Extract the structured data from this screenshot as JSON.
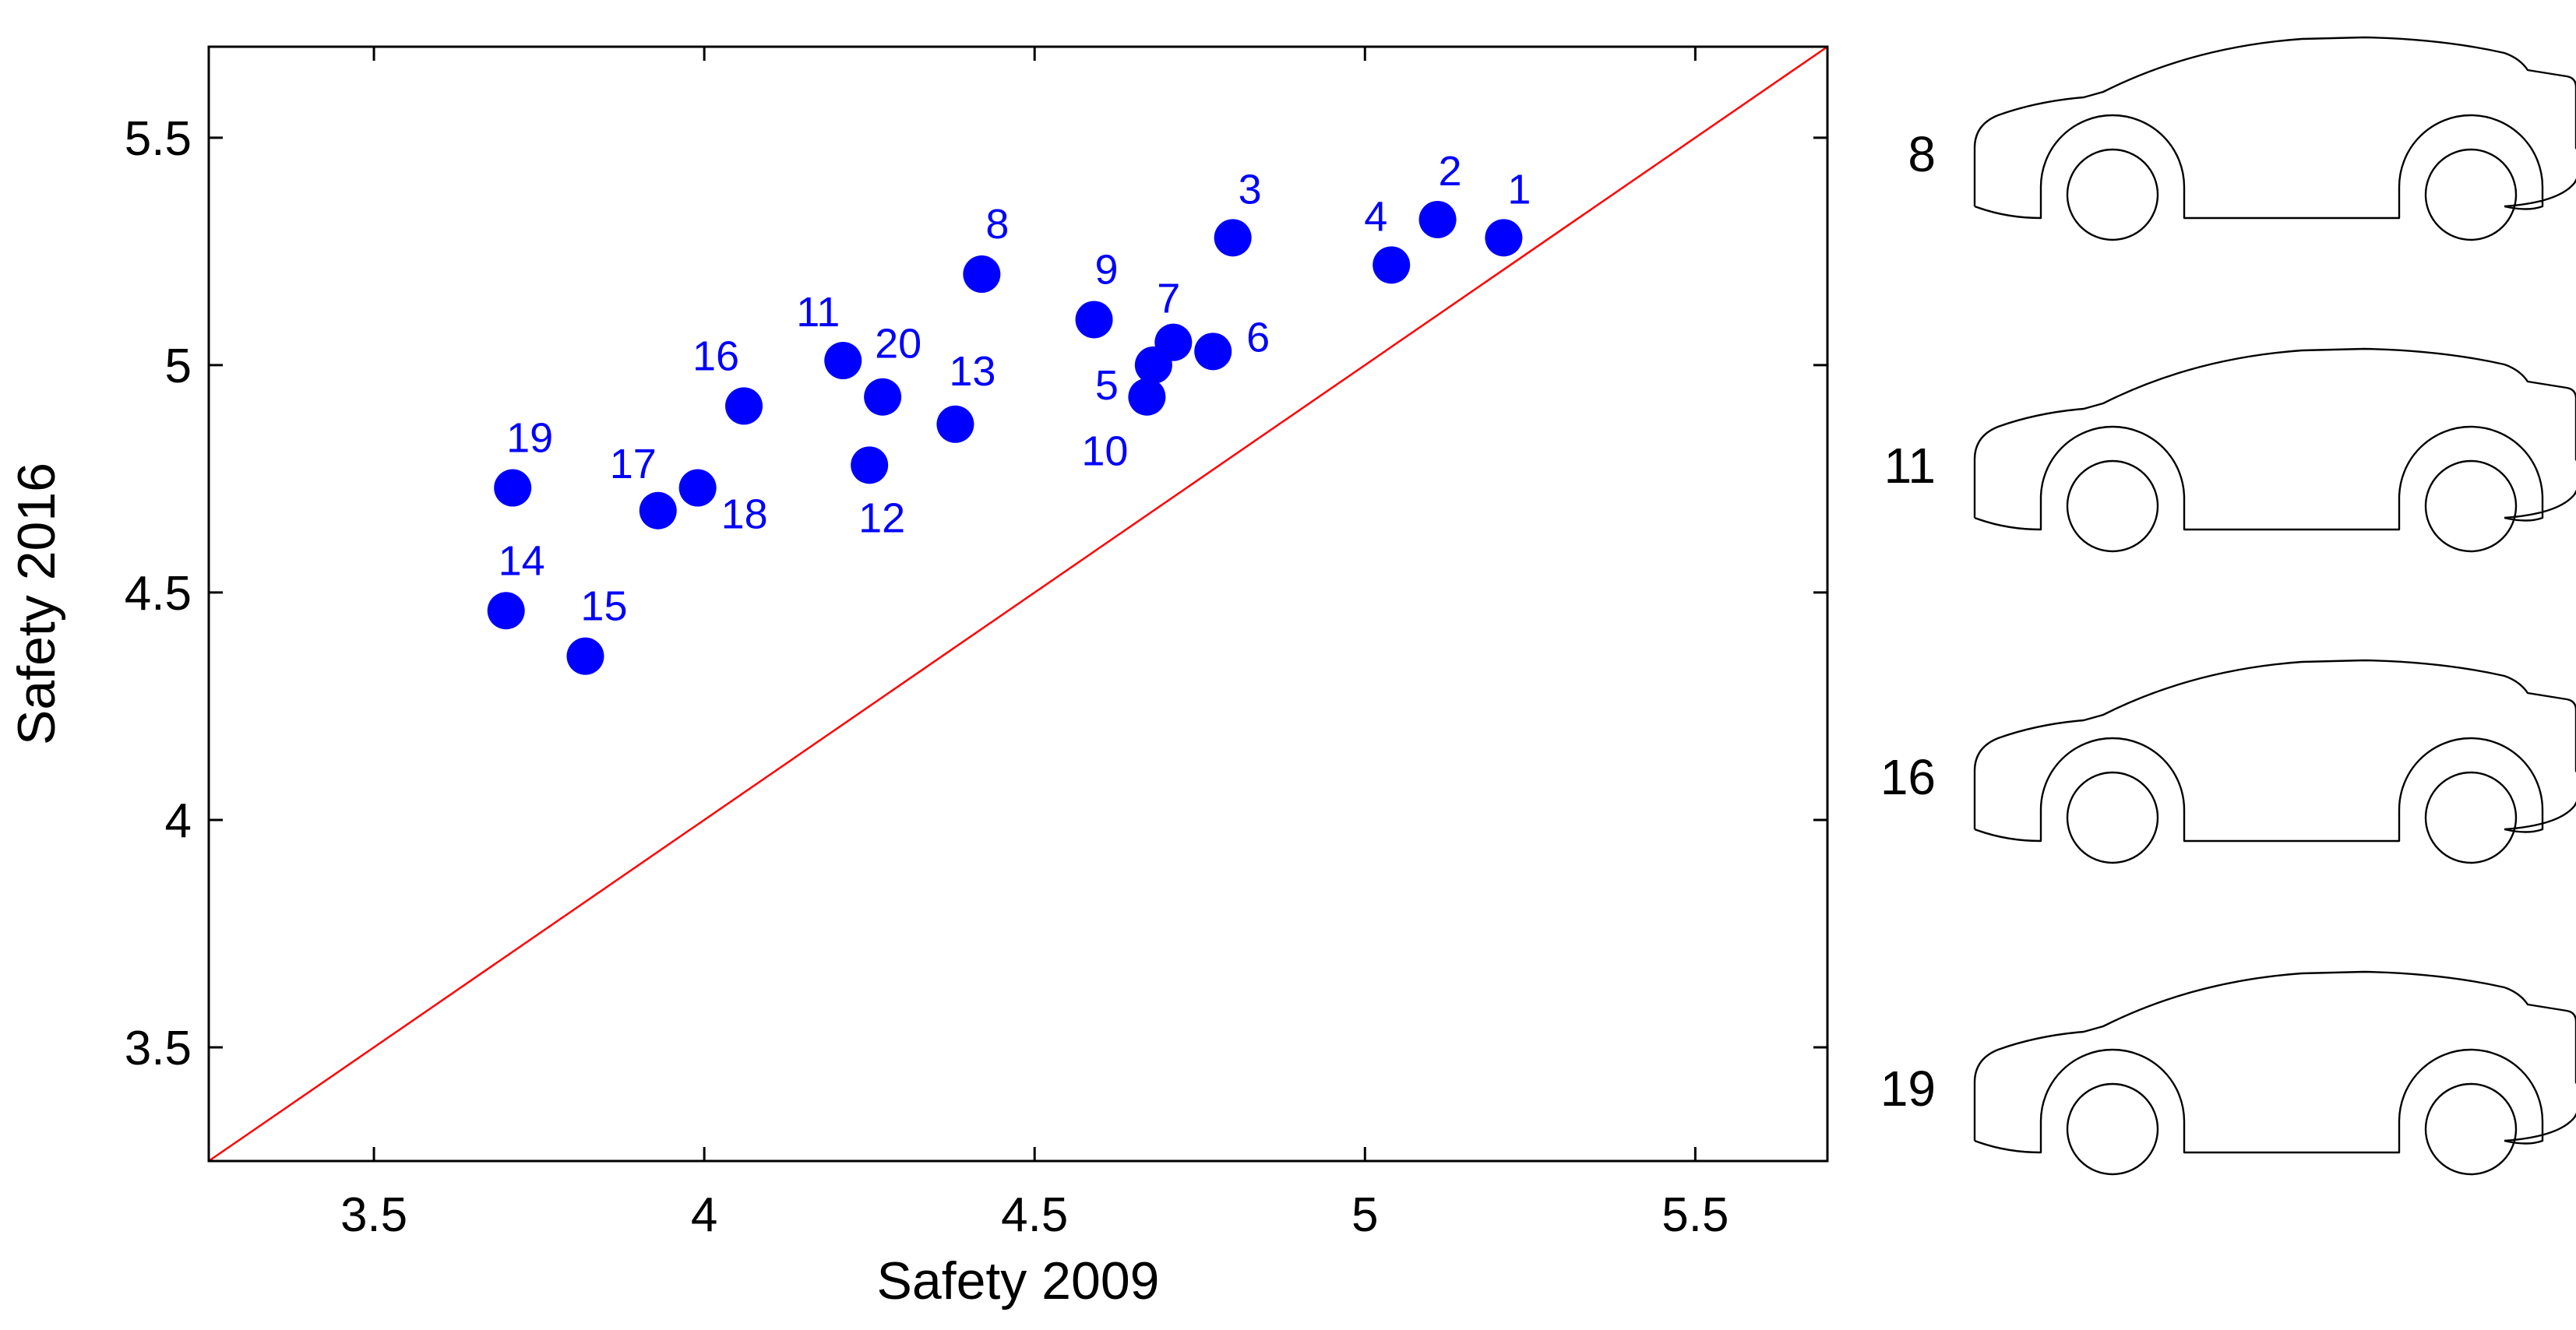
{
  "chart_data": {
    "type": "scatter",
    "xlabel": "Safety 2009",
    "ylabel": "Safety 2016",
    "xlim": [
      3.25,
      5.7
    ],
    "ylim": [
      3.25,
      5.7
    ],
    "xticks": [
      "3.5",
      "4",
      "4.5",
      "5",
      "5.5"
    ],
    "yticks": [
      "3.5",
      "4",
      "4.5",
      "5",
      "5.5"
    ],
    "grid": false,
    "reference_line": {
      "from": [
        3.25,
        3.25
      ],
      "to": [
        5.7,
        5.7
      ],
      "color": "#ff0000"
    },
    "marker_color": "#0000ff",
    "points": [
      {
        "label": "1",
        "x": 5.21,
        "y": 5.28
      },
      {
        "label": "2",
        "x": 5.11,
        "y": 5.32
      },
      {
        "label": "3",
        "x": 4.8,
        "y": 5.28
      },
      {
        "label": "4",
        "x": 5.04,
        "y": 5.22
      },
      {
        "label": "5",
        "x": 4.68,
        "y": 5.0
      },
      {
        "label": "6",
        "x": 4.77,
        "y": 5.03
      },
      {
        "label": "7",
        "x": 4.71,
        "y": 5.05
      },
      {
        "label": "8",
        "x": 4.42,
        "y": 5.2
      },
      {
        "label": "9",
        "x": 4.59,
        "y": 5.1
      },
      {
        "label": "10",
        "x": 4.67,
        "y": 4.93
      },
      {
        "label": "11",
        "x": 4.21,
        "y": 5.01
      },
      {
        "label": "12",
        "x": 4.25,
        "y": 4.78
      },
      {
        "label": "13",
        "x": 4.38,
        "y": 4.87
      },
      {
        "label": "14",
        "x": 3.7,
        "y": 4.46
      },
      {
        "label": "15",
        "x": 3.82,
        "y": 4.36
      },
      {
        "label": "16",
        "x": 4.06,
        "y": 4.91
      },
      {
        "label": "17",
        "x": 3.93,
        "y": 4.68
      },
      {
        "label": "18",
        "x": 3.99,
        "y": 4.73
      },
      {
        "label": "19",
        "x": 3.71,
        "y": 4.73
      },
      {
        "label": "20",
        "x": 4.27,
        "y": 4.93
      }
    ]
  },
  "car_panel": {
    "items": [
      {
        "label": "8",
        "icon": "car-profile-icon"
      },
      {
        "label": "11",
        "icon": "car-profile-icon"
      },
      {
        "label": "16",
        "icon": "car-profile-icon"
      },
      {
        "label": "19",
        "icon": "car-profile-icon"
      }
    ]
  }
}
